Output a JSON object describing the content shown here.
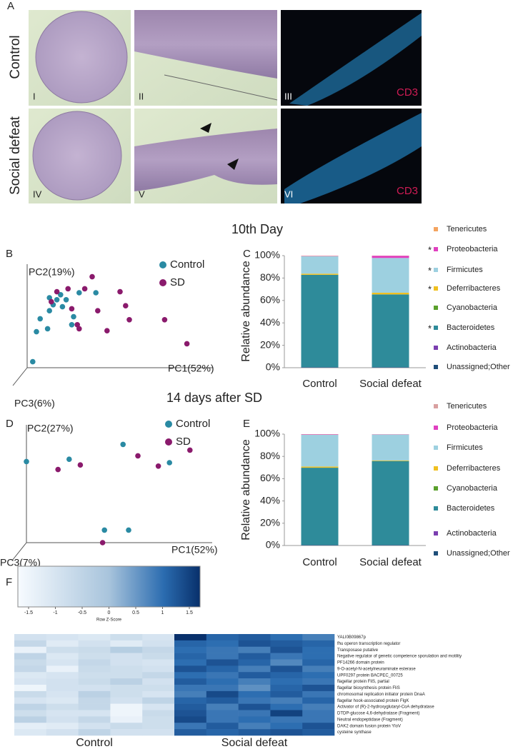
{
  "panel_a": {
    "panel": "A",
    "row_labels": [
      "Control",
      "Social defeat"
    ],
    "image_labels": [
      "I",
      "II",
      "III",
      "IV",
      "V",
      "VI"
    ],
    "stain_labels": [
      "CD3",
      "CD3"
    ]
  },
  "section_titles": [
    "10th Day",
    "14 days after SD"
  ],
  "chart_data": [
    {
      "type": "scatter",
      "panel": "B",
      "x_label": "PC1(52%)",
      "y_label": "PC2(19%)",
      "z_label": "PC3(6%)",
      "xlim": [
        0,
        100
      ],
      "ylim": [
        0,
        100
      ],
      "series": [
        {
          "name": "Control",
          "color": "#2a8aa3",
          "x": [
            3,
            5,
            7,
            11,
            12,
            14,
            16,
            18,
            19,
            21,
            24,
            25,
            28,
            37,
            12
          ],
          "values": [
            6,
            36,
            49,
            39,
            70,
            63,
            68,
            73,
            61,
            68,
            43,
            51,
            75,
            75,
            57
          ]
        },
        {
          "name": "SD",
          "color": "#8a1a6c",
          "x": [
            13,
            16,
            22,
            24,
            28,
            31,
            35,
            43,
            50,
            53,
            55,
            74,
            86,
            38,
            27
          ],
          "values": [
            66,
            76,
            79,
            59,
            39,
            79,
            91,
            37,
            76,
            62,
            48,
            48,
            24,
            57,
            43
          ]
        }
      ]
    },
    {
      "type": "stacked_bar",
      "panel": "C",
      "y_label": "Relative abundance",
      "categories": [
        "Control",
        "Social defeat"
      ],
      "ylim": [
        0,
        100
      ],
      "yticks": [
        {
          "value": 0,
          "label": "0%"
        },
        {
          "value": 20,
          "label": "20%"
        },
        {
          "value": 40,
          "label": "40%"
        },
        {
          "value": 60,
          "label": "60%"
        },
        {
          "value": 80,
          "label": "80%"
        },
        {
          "value": 100,
          "label": "100%"
        }
      ],
      "series": [
        {
          "name": "Unassigned;Other",
          "color": "#1f4e79",
          "values": [
            0.2,
            0.2
          ]
        },
        {
          "name": "Actinobacteria",
          "color": "#7b3fb0",
          "values": [
            0.1,
            0.1
          ]
        },
        {
          "name": "Bacteroidetes",
          "color": "#2e8b9a",
          "values": [
            82.5,
            65
          ],
          "annotation": "*"
        },
        {
          "name": "Cyanobacteria",
          "color": "#5aa02c",
          "values": [
            0.1,
            0.1
          ]
        },
        {
          "name": "Deferribacteres",
          "color": "#f0c020",
          "values": [
            1,
            1.5
          ],
          "annotation": "*"
        },
        {
          "name": "Firmicutes",
          "color": "#9dd0e0",
          "values": [
            15.6,
            31
          ],
          "annotation": "*"
        },
        {
          "name": "Proteobacteria",
          "color": "#e040c0",
          "values": [
            0.3,
            2
          ],
          "annotation": "*"
        },
        {
          "name": "Tenericutes",
          "color": "#f4a460",
          "values": [
            0.2,
            0.1
          ]
        }
      ]
    },
    {
      "type": "scatter",
      "panel": "D",
      "x_label": "PC1(52%)",
      "y_label": "PC2(27%)",
      "z_label": "PC3(7%)",
      "xlim": [
        0,
        100
      ],
      "ylim": [
        0,
        100
      ],
      "series": [
        {
          "name": "Control",
          "color": "#2a8aa3",
          "x": [
            0,
            23,
            52,
            77,
            42,
            55
          ],
          "values": [
            71,
            73,
            86,
            70,
            11,
            11
          ]
        },
        {
          "name": "SD",
          "color": "#8a1a6c",
          "x": [
            17,
            29,
            60,
            71,
            88,
            41
          ],
          "values": [
            64,
            68,
            76,
            67,
            81,
            0
          ]
        }
      ]
    },
    {
      "type": "stacked_bar",
      "panel": "E",
      "y_label": "Relative abundance",
      "categories": [
        "Control",
        "Social defeat"
      ],
      "ylim": [
        0,
        100
      ],
      "yticks": [
        {
          "value": 0,
          "label": "0%"
        },
        {
          "value": 20,
          "label": "20%"
        },
        {
          "value": 40,
          "label": "40%"
        },
        {
          "value": 60,
          "label": "60%"
        },
        {
          "value": 80,
          "label": "80%"
        },
        {
          "value": 100,
          "label": "100%"
        }
      ],
      "series": [
        {
          "name": "Unassigned;Other",
          "color": "#1f4e79",
          "values": [
            0.2,
            0.2
          ]
        },
        {
          "name": "Actinobacteria",
          "color": "#7b3fb0",
          "values": [
            0.1,
            0.1
          ]
        },
        {
          "name": "Bacteroidetes",
          "color": "#2e8b9a",
          "values": [
            69.5,
            75.5
          ]
        },
        {
          "name": "Cyanobacteria",
          "color": "#5aa02c",
          "values": [
            0.1,
            0.1
          ]
        },
        {
          "name": "Deferribacteres",
          "color": "#f0c020",
          "values": [
            1,
            0.5
          ]
        },
        {
          "name": "Firmicutes",
          "color": "#9dd0e0",
          "values": [
            28.5,
            23.2
          ]
        },
        {
          "name": "Proteobacteria",
          "color": "#e040c0",
          "values": [
            0.3,
            0.2
          ]
        },
        {
          "name": "Tenericutes",
          "color": "#d9a0a0",
          "values": [
            0.3,
            0.2
          ]
        }
      ]
    },
    {
      "type": "heatmap",
      "panel": "F",
      "colorbar_title": "Row Z-Score",
      "clim": [
        -1.7,
        1.7
      ],
      "cticks": [
        -1.5,
        -1,
        -0.5,
        0,
        0.5,
        1,
        1.5
      ],
      "column_groups": [
        "Control",
        "Social defeat"
      ],
      "rows": [
        "YALI0B09867p",
        "fhu operon transcription regulator",
        "Transposase putative",
        "Negative regulator of genetic competence sporulation and motility",
        "PF14266 domain protein",
        "9-O-acetyl-N-acetylneuraminate esterase",
        "UPF0297 protein BACPEC_00725",
        "flagellar protein FliS, partial",
        "flagellar biosynthesis protein FliS",
        "chromosomal replication initiator protein DnaA",
        "flagellar hook-associated protein FlgK",
        "Activator of (R)-2-hydroxyglutaryl-CoA dehydratase",
        "DTDP-glucose 4,6-dehydratase (Fragment)",
        "Neutral endopeptidase (Fragment)",
        "DAK2 domain fusion protein YloV",
        "cysteine synthase"
      ],
      "values": [
        [
          -0.9,
          -1.0,
          -1.1,
          -0.8,
          -1.0,
          1.7,
          1.1,
          1.2,
          1.0,
          0.8
        ],
        [
          -0.6,
          -1.2,
          -0.9,
          -1.2,
          -0.9,
          1.1,
          1.0,
          1.3,
          1.2,
          1.1
        ],
        [
          -1.4,
          -0.8,
          -0.7,
          -0.3,
          -0.6,
          1.0,
          0.9,
          0.8,
          1.3,
          1.0
        ],
        [
          -0.5,
          -1.1,
          -0.8,
          -0.9,
          -0.7,
          1.1,
          0.9,
          1.2,
          0.9,
          1.0
        ],
        [
          -0.7,
          -1.0,
          -0.6,
          -0.9,
          -1.0,
          1.0,
          1.3,
          1.1,
          0.7,
          1.1
        ],
        [
          -0.6,
          -1.4,
          -0.7,
          -0.8,
          -0.9,
          1.3,
          1.1,
          0.8,
          1.3,
          0.8
        ],
        [
          -1.1,
          -1.0,
          -0.8,
          -0.8,
          -0.6,
          1.0,
          0.9,
          1.2,
          1.1,
          1.0
        ],
        [
          -1.0,
          -0.9,
          -0.7,
          -0.4,
          -0.9,
          1.2,
          1.0,
          0.8,
          1.0,
          0.9
        ],
        [
          -1.5,
          -0.9,
          -0.9,
          -0.8,
          -0.8,
          0.9,
          0.9,
          0.6,
          1.1,
          1.3
        ],
        [
          -0.7,
          -1.0,
          -0.4,
          -0.8,
          -1.0,
          0.8,
          1.4,
          1.0,
          1.2,
          0.9
        ],
        [
          -1.0,
          -1.1,
          -0.6,
          -0.9,
          -0.5,
          1.1,
          1.2,
          0.9,
          0.8,
          1.1
        ],
        [
          -0.5,
          -0.8,
          -0.6,
          -1.5,
          -1.0,
          1.2,
          0.8,
          1.3,
          1.0,
          0.8
        ],
        [
          -0.8,
          -1.0,
          -1.0,
          -1.5,
          -0.7,
          1.3,
          0.9,
          0.9,
          1.5,
          0.9
        ],
        [
          -0.4,
          -0.9,
          -0.6,
          -1.4,
          -0.8,
          1.4,
          0.9,
          1.0,
          0.9,
          0.9
        ],
        [
          -1.3,
          -1.2,
          -0.9,
          -0.7,
          -0.8,
          0.9,
          1.2,
          0.8,
          1.0,
          1.3
        ],
        [
          -1.1,
          -0.9,
          -0.5,
          -0.9,
          -0.9,
          1.2,
          1.1,
          1.2,
          1.3,
          1.2
        ]
      ]
    }
  ]
}
